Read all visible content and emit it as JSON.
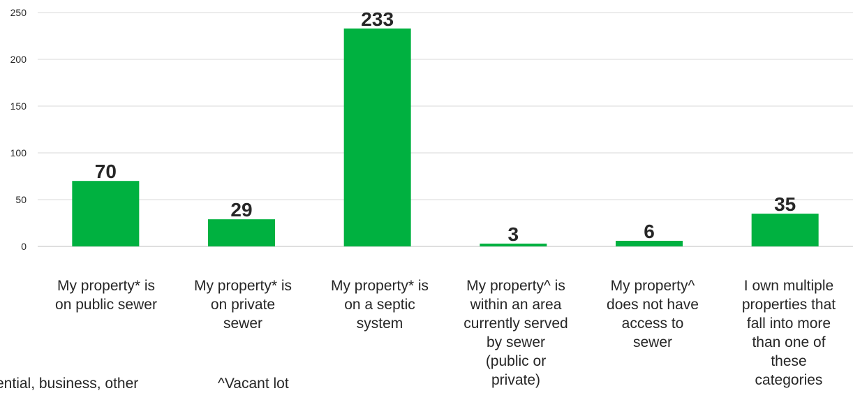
{
  "chart_data": {
    "type": "bar",
    "title": "",
    "xlabel": "",
    "ylabel": "",
    "ylim": [
      0,
      250
    ],
    "yticks": [
      0,
      50,
      100,
      150,
      200,
      250
    ],
    "grid": true,
    "bar_color": "#00b140",
    "categories": [
      "My property* is on public sewer",
      "My property* is on private sewer",
      "My property* is on a septic system",
      "My property^ is within an area currently served by sewer (public or private)",
      "My property^ does not have access to sewer",
      "I own multiple properties that fall into more than one of these categories"
    ],
    "values": [
      70,
      29,
      233,
      3,
      6,
      35
    ],
    "data_labels": [
      "70",
      "29",
      "233",
      "3",
      "6",
      "35"
    ]
  },
  "footnotes": {
    "asterisk": "ential, business, other",
    "caret": "^Vacant lot"
  }
}
